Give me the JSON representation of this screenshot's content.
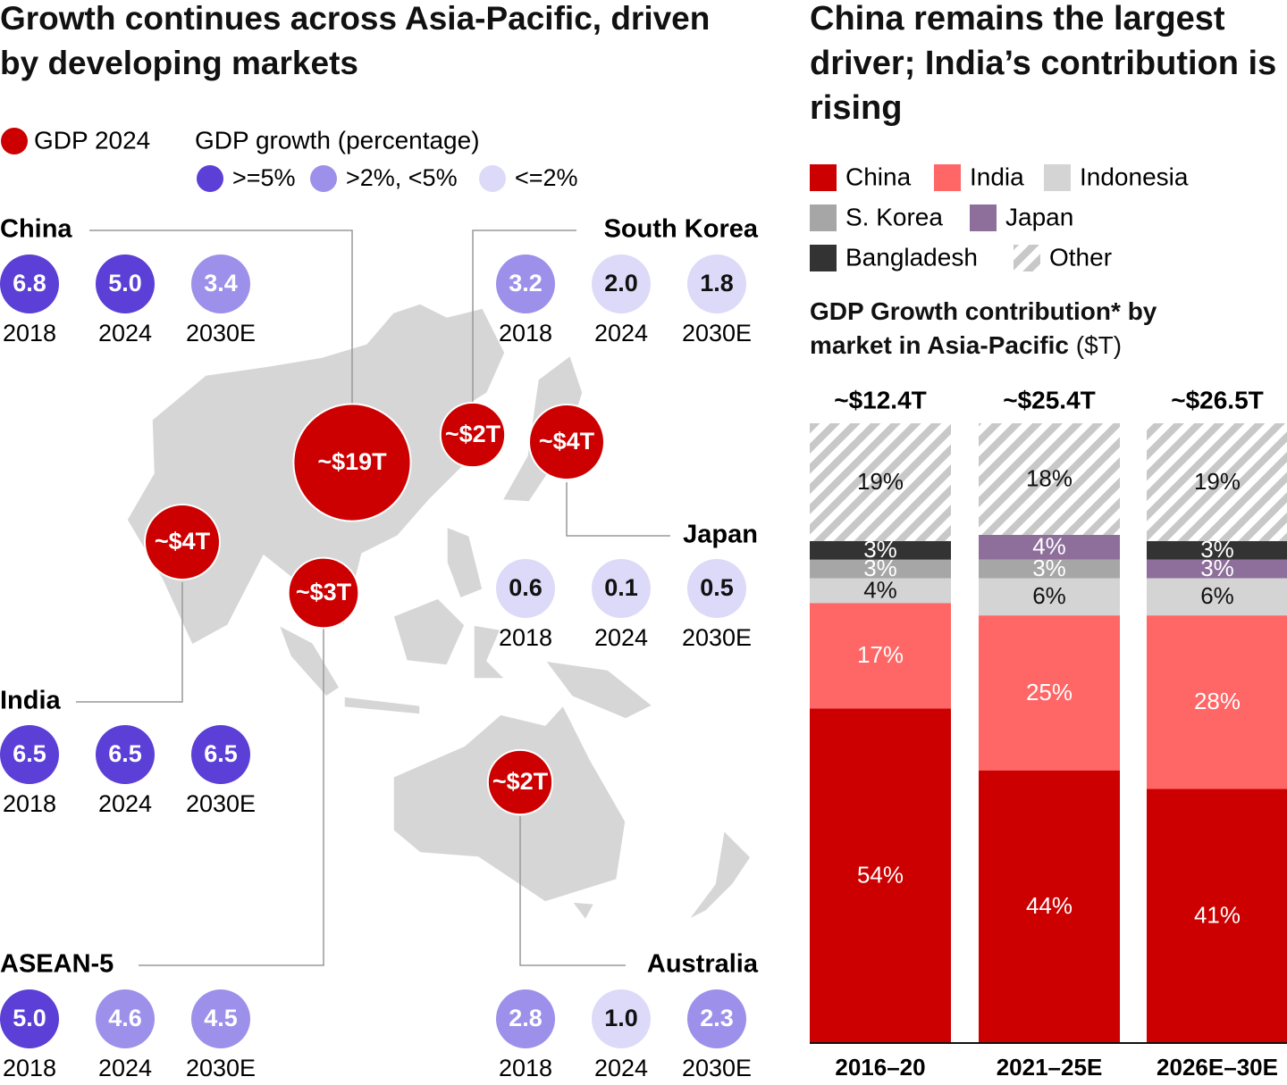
{
  "map_panel": {
    "title": "Growth continues across Asia-Pacific, driven by developing markets",
    "legend": {
      "gdp_label": "GDP 2024",
      "gdp_color": "#cc0000",
      "growth_label": "GDP growth (percentage)",
      "growth_classes": [
        {
          "label": ">=5%",
          "color": "#5b3fd6",
          "text_color": "#ffffff",
          "min": 5
        },
        {
          "label": ">2%, <5%",
          "color": "#9d90ea",
          "text_color": "#ffffff",
          "above": 2
        },
        {
          "label": "<=2%",
          "color": "#dcdaf8",
          "text_color": "#111111"
        }
      ]
    },
    "years": [
      "2018",
      "2024",
      "2030E"
    ],
    "markets": [
      {
        "name": "China",
        "gdp": 19,
        "gdp_label": "~$19T",
        "growth": [
          6.8,
          5.0,
          3.4
        ],
        "growth_labels": [
          "6.8",
          "5.0",
          "3.4"
        ]
      },
      {
        "name": "South Korea",
        "gdp": 2,
        "gdp_label": "~$2T",
        "growth": [
          3.2,
          2.0,
          1.8
        ],
        "growth_labels": [
          "3.2",
          "2.0",
          "1.8"
        ]
      },
      {
        "name": "Japan",
        "gdp": 4,
        "gdp_label": "~$4T",
        "growth": [
          0.6,
          0.1,
          0.5
        ],
        "growth_labels": [
          "0.6",
          "0.1",
          "0.5"
        ]
      },
      {
        "name": "India",
        "gdp": 4,
        "gdp_label": "~$4T",
        "growth": [
          6.5,
          6.5,
          6.5
        ],
        "growth_labels": [
          "6.5",
          "6.5",
          "6.5"
        ]
      },
      {
        "name": "ASEAN-5",
        "gdp": 3,
        "gdp_label": "~$3T",
        "growth": [
          5.0,
          4.6,
          4.5
        ],
        "growth_labels": [
          "5.0",
          "4.6",
          "4.5"
        ]
      },
      {
        "name": "Australia",
        "gdp": 2,
        "gdp_label": "~$2T",
        "growth": [
          2.8,
          1.0,
          2.3
        ],
        "growth_labels": [
          "2.8",
          "1.0",
          "2.3"
        ]
      }
    ]
  },
  "chart_data": {
    "type": "stacked_bar",
    "title": "China remains the largest driver; India’s contribution is rising",
    "subtitle": "GDP Growth contribution* by market in Asia-Pacific",
    "unit": "($T)",
    "categories": [
      "2016–20",
      "2021–25E",
      "2026E–30E"
    ],
    "totals": [
      "~$12.4T",
      "~$25.4T",
      "~$26.5T"
    ],
    "ylim": [
      0,
      100
    ],
    "series": [
      {
        "name": "China",
        "color": "#cc0000",
        "label_color": "#ffffff",
        "values": [
          54,
          44,
          41
        ],
        "value_labels": [
          "54%",
          "44%",
          "41%"
        ]
      },
      {
        "name": "India",
        "color": "#ff6666",
        "label_color": "#ffffff",
        "values": [
          17,
          25,
          28
        ],
        "value_labels": [
          "17%",
          "25%",
          "28%"
        ]
      },
      {
        "name": "Indonesia",
        "color": "#d4d4d4",
        "label_color": "#111111",
        "values": [
          4,
          6,
          6
        ],
        "value_labels": [
          "4%",
          "6%",
          "6%"
        ]
      },
      {
        "name": "S. Korea",
        "color": "#a6a6a6",
        "label_color": "#ffffff",
        "values": [
          3,
          3,
          null
        ],
        "value_labels": [
          "3%",
          "3%",
          null
        ]
      },
      {
        "name": "Japan",
        "color": "#8e6e9a",
        "label_color": "#ffffff",
        "values": [
          null,
          4,
          3
        ],
        "value_labels": [
          null,
          "4%",
          "3%"
        ]
      },
      {
        "name": "Bangladesh",
        "color": "#333333",
        "label_color": "#ffffff",
        "values": [
          3,
          null,
          3
        ],
        "value_labels": [
          "3%",
          null,
          "3%"
        ]
      },
      {
        "name": "Other",
        "color": "#c8c8c8",
        "pattern": "hatch",
        "label_color": "#111111",
        "values": [
          19,
          18,
          19
        ],
        "value_labels": [
          "19%",
          "18%",
          "19%"
        ]
      }
    ]
  }
}
